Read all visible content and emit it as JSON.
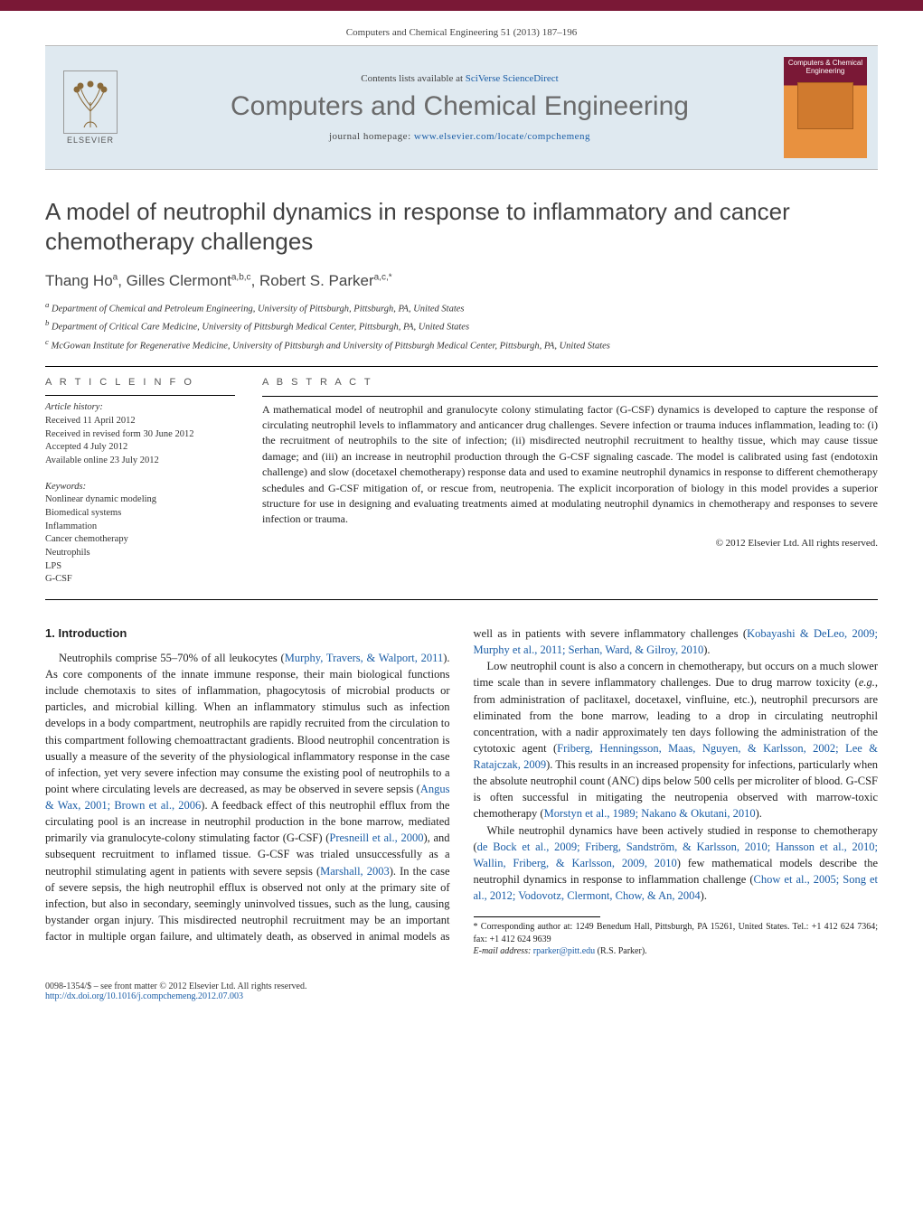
{
  "running_head": "Computers and Chemical Engineering 51 (2013) 187–196",
  "masthead": {
    "contents_prefix": "Contents lists available at ",
    "contents_link": "SciVerse ScienceDirect",
    "journal": "Computers and Chemical Engineering",
    "homepage_prefix": "journal homepage: ",
    "homepage_url": "www.elsevier.com/locate/compchemeng",
    "publisher": "ELSEVIER",
    "cover_title": "Computers & Chemical Engineering"
  },
  "title": "A model of neutrophil dynamics in response to inflammatory and cancer chemotherapy challenges",
  "authors_html": "Thang Ho<sup>a</sup>, Gilles Clermont<sup>a,b,c</sup>, Robert S. Parker<sup>a,c,*</sup>",
  "affiliations": [
    "a Department of Chemical and Petroleum Engineering, University of Pittsburgh, Pittsburgh, PA, United States",
    "b Department of Critical Care Medicine, University of Pittsburgh Medical Center, Pittsburgh, PA, United States",
    "c McGowan Institute for Regenerative Medicine, University of Pittsburgh and University of Pittsburgh Medical Center, Pittsburgh, PA, United States"
  ],
  "article_info_head": "A R T I C L E   I N F O",
  "abstract_head": "A B S T R A C T",
  "history_head": "Article history:",
  "history": [
    "Received 11 April 2012",
    "Received in revised form 30 June 2012",
    "Accepted 4 July 2012",
    "Available online 23 July 2012"
  ],
  "keywords_head": "Keywords:",
  "keywords": [
    "Nonlinear dynamic modeling",
    "Biomedical systems",
    "Inflammation",
    "Cancer chemotherapy",
    "Neutrophils",
    "LPS",
    "G-CSF"
  ],
  "abstract": "A mathematical model of neutrophil and granulocyte colony stimulating factor (G-CSF) dynamics is developed to capture the response of circulating neutrophil levels to inflammatory and anticancer drug challenges. Severe infection or trauma induces inflammation, leading to: (i) the recruitment of neutrophils to the site of infection; (ii) misdirected neutrophil recruitment to healthy tissue, which may cause tissue damage; and (iii) an increase in neutrophil production through the G-CSF signaling cascade. The model is calibrated using fast (endotoxin challenge) and slow (docetaxel chemotherapy) response data and used to examine neutrophil dynamics in response to different chemotherapy schedules and G-CSF mitigation of, or rescue from, neutropenia. The explicit incorporation of biology in this model provides a superior structure for use in designing and evaluating treatments aimed at modulating neutrophil dynamics in chemotherapy and responses to severe infection or trauma.",
  "copyright_line": "© 2012 Elsevier Ltd. All rights reserved.",
  "section1_head": "1.  Introduction",
  "p1a": "Neutrophils comprise 55–70% of all leukocytes (",
  "p1_link1": "Murphy, Travers, & Walport, 2011",
  "p1b": "). As core components of the innate immune response, their main biological functions include chemotaxis to sites of inflammation, phagocytosis of microbial products or particles, and microbial killing. When an inflammatory stimulus such as infection develops in a body compartment, neutrophils are rapidly recruited from the circulation to this compartment following chemoattractant gradients. Blood neutrophil concentration is usually a measure of the severity of the physiological inflammatory response in the case of infection, yet very severe infection may consume the existing pool of neutrophils to a point where circulating levels are decreased, as may be observed in severe sepsis (",
  "p1_link2": "Angus & Wax, 2001; Brown et al., 2006",
  "p1c": "). A feedback effect of this neutrophil efflux from the circulating pool is an increase in neutrophil production in the bone marrow, mediated primarily via granulocyte-colony stimulating factor (G-CSF) (",
  "p1_link3": "Presneill et al., 2000",
  "p1d": "), and subsequent recruitment to inflamed tissue. G-CSF was trialed unsuccessfully as a neutrophil stimulating agent in patients with severe sepsis (",
  "p1_link4": "Marshall, 2003",
  "p1e": "). In the case of severe sepsis, the high neutrophil efflux is observed not only at the primary site of infection, but also in secondary, seemingly uninvolved tissues, such as the lung, causing bystander organ injury. This misdirected neutrophil recruitment may be an important factor in multiple organ failure, and ultimately death, as observed in animal models as well as in patients with severe inflammatory challenges (",
  "p1_link5": "Kobayashi & DeLeo, 2009; Murphy et al., 2011; Serhan, Ward, & Gilroy, 2010",
  "p1f": ").",
  "p2a": "Low neutrophil count is also a concern in chemotherapy, but occurs on a much slower time scale than in severe inflammatory challenges. Due to drug marrow toxicity (",
  "p2_ital": "e.g.",
  "p2b": ", from administration of paclitaxel, docetaxel, vinfluine, etc.), neutrophil precursors are eliminated from the bone marrow, leading to a drop in circulating neutrophil concentration, with a nadir approximately ten days following the administration of the cytotoxic agent (",
  "p2_link1": "Friberg, Henningsson, Maas, Nguyen, & Karlsson, 2002; Lee & Ratajczak, 2009",
  "p2c": "). This results in an increased propensity for infections, particularly when the absolute neutrophil count (ANC) dips below 500 cells per microliter of blood. G-CSF is often successful in mitigating the neutropenia observed with marrow-toxic chemotherapy (",
  "p2_link2": "Morstyn et al., 1989; Nakano & Okutani, 2010",
  "p2d": ").",
  "p3a": "While neutrophil dynamics have been actively studied in response to chemotherapy (",
  "p3_link1": "de Bock et al., 2009; Friberg, Sandström, & Karlsson, 2010; Hansson et al., 2010; Wallin, Friberg, & Karlsson, 2009, 2010",
  "p3b": ") few mathematical models describe the neutrophil dynamics in response to inflammation challenge (",
  "p3_link2": "Chow et al., 2005; Song et al., 2012; Vodovotz, Clermont, Chow, & An, 2004",
  "p3c": ").",
  "footnote_label": "* Corresponding author at: 1249 Benedum Hall, Pittsburgh, PA 15261, United States. Tel.: +1 412 624 7364; fax: +1 412 624 9639",
  "footnote_email_label": "E-mail address: ",
  "footnote_email": "rparker@pitt.edu",
  "footnote_email_tail": " (R.S. Parker).",
  "footer_left": "0098-1354/$ – see front matter © 2012 Elsevier Ltd. All rights reserved.",
  "footer_doi": "http://dx.doi.org/10.1016/j.compchemeng.2012.07.003",
  "colors": {
    "link": "#1a5da6",
    "bar_bg": "#dfe9f0",
    "brand": "#7a1836",
    "cover_orange": "#e8913f",
    "title_gray": "#6a6a6a"
  }
}
